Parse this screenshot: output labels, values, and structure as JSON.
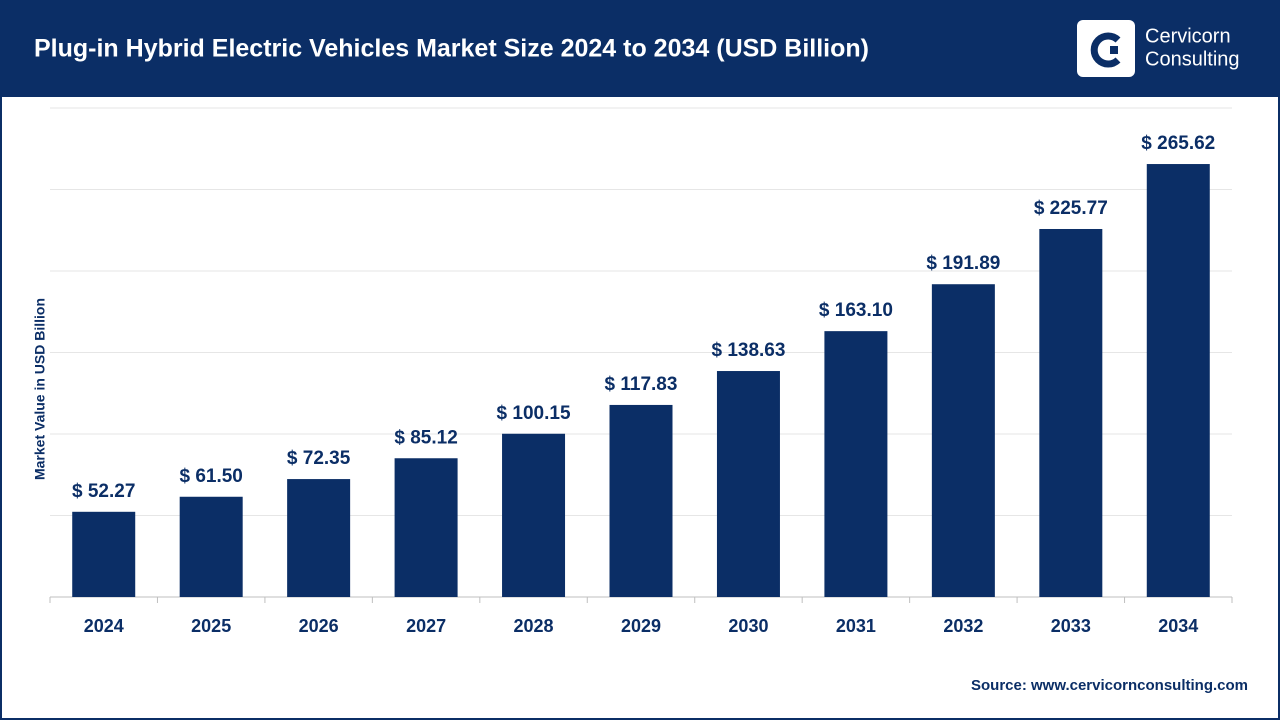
{
  "chart_data": {
    "type": "bar",
    "title": "Plug-in Hybrid Electric Vehicles Market Size 2024 to 2034 (USD Billion)",
    "brand": [
      "Cervicorn",
      "Consulting"
    ],
    "y_label": "Market Value in USD Billion",
    "source": "Source: www.cervicornconsulting.com",
    "categories": [
      "2024",
      "2025",
      "2026",
      "2027",
      "2028",
      "2029",
      "2030",
      "2031",
      "2032",
      "2033",
      "2034"
    ],
    "values": [
      52.27,
      61.5,
      72.35,
      85.12,
      100.15,
      117.83,
      138.63,
      163.1,
      191.89,
      225.77,
      265.62
    ],
    "value_labels": [
      "$ 52.27",
      "$ 61.50",
      "$ 72.35",
      "$ 85.12",
      "$ 100.15",
      "$ 117.83",
      "$ 138.63",
      "$ 163.10",
      "$ 191.89",
      "$ 225.77",
      "$ 265.62"
    ],
    "color": "#0b2e66",
    "ylim": [
      0,
      300
    ],
    "yticks": [
      0,
      50,
      100,
      150,
      200,
      250,
      300
    ],
    "grid": true
  }
}
